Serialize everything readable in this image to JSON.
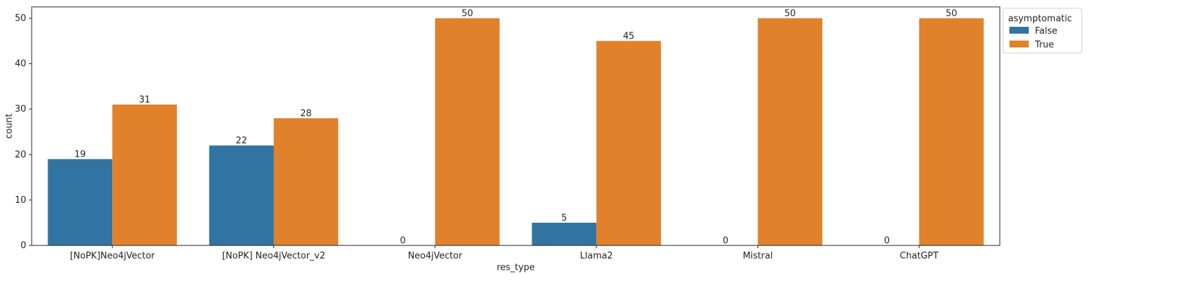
{
  "chart_data": {
    "type": "bar",
    "xlabel": "res_type",
    "ylabel": "count",
    "ylim": [
      0,
      52.5
    ],
    "yticks": [
      0,
      10,
      20,
      30,
      40,
      50
    ],
    "categories": [
      "[NoPK]Neo4jVector",
      "[NoPK] Neo4jVector_v2",
      "Neo4jVector",
      "Llama2",
      "Mistral",
      "ChatGPT"
    ],
    "series": [
      {
        "name": "False",
        "color": "#3274a1",
        "values": [
          19,
          22,
          0,
          5,
          0,
          0
        ]
      },
      {
        "name": "True",
        "color": "#e1812c",
        "values": [
          31,
          28,
          50,
          45,
          50,
          50
        ]
      }
    ],
    "legend": {
      "title": "asymptomatic",
      "placement": "outside-top-right"
    },
    "grid": false
  }
}
